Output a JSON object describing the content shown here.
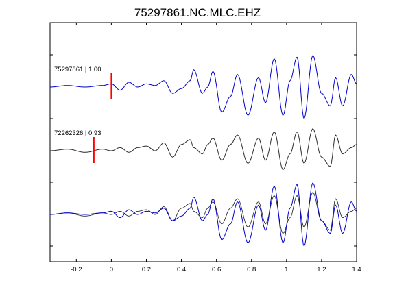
{
  "chart_data": {
    "type": "line",
    "title": "75297861.NC.MLC.EHZ",
    "xlabel": "",
    "ylabel": "",
    "xlim": [
      -0.35,
      1.4
    ],
    "x_ticks": [
      -0.2,
      0,
      0.2,
      0.4,
      0.6,
      0.8,
      1,
      1.2,
      1.4
    ],
    "x_tick_labels": [
      "-0.2",
      "0",
      "0.2",
      "0.4",
      "0.6",
      "0.8",
      "1",
      "1.2",
      "1.4"
    ],
    "grid": false,
    "colors": {
      "primary": "#0000cc",
      "secondary": "#2b2b2b",
      "marker": "#ff0000"
    },
    "traces": [
      {
        "name": "75297861",
        "label": "75297861 | 1.00",
        "color": "#0000cc",
        "pick_time": 0.0,
        "x": [
          -0.35,
          -0.25,
          -0.15,
          -0.05,
          0.0,
          0.05,
          0.1,
          0.15,
          0.2,
          0.25,
          0.3,
          0.35,
          0.4,
          0.45,
          0.47,
          0.52,
          0.55,
          0.58,
          0.63,
          0.68,
          0.72,
          0.78,
          0.84,
          0.88,
          0.93,
          0.98,
          1.02,
          1.06,
          1.1,
          1.15,
          1.2,
          1.25,
          1.28,
          1.32,
          1.37,
          1.4
        ],
        "y": [
          0.0,
          0.05,
          0.0,
          0.05,
          0.1,
          -0.1,
          0.15,
          0.0,
          0.1,
          0.05,
          0.2,
          -0.2,
          -0.05,
          0.2,
          0.55,
          -0.2,
          0.0,
          0.5,
          -0.8,
          -0.3,
          0.4,
          -0.9,
          0.3,
          -0.5,
          0.9,
          -0.9,
          0.2,
          0.95,
          -1.0,
          1.0,
          -0.2,
          -0.6,
          0.3,
          -0.6,
          0.4,
          0.1
        ]
      },
      {
        "name": "72262326",
        "label": "72262326 | 0.93",
        "color": "#2b2b2b",
        "pick_time": -0.1,
        "x": [
          -0.35,
          -0.25,
          -0.15,
          -0.05,
          0.0,
          0.05,
          0.1,
          0.15,
          0.2,
          0.25,
          0.3,
          0.35,
          0.4,
          0.45,
          0.47,
          0.52,
          0.55,
          0.58,
          0.63,
          0.68,
          0.72,
          0.78,
          0.84,
          0.88,
          0.93,
          0.98,
          1.02,
          1.06,
          1.1,
          1.15,
          1.2,
          1.25,
          1.28,
          1.32,
          1.37,
          1.4
        ],
        "y": [
          0.0,
          0.05,
          -0.05,
          0.05,
          0.0,
          0.1,
          -0.05,
          0.1,
          0.15,
          0.0,
          0.25,
          -0.2,
          0.2,
          0.35,
          0.1,
          -0.1,
          0.2,
          0.4,
          -0.3,
          0.2,
          0.5,
          -0.4,
          0.4,
          -0.3,
          0.6,
          -0.6,
          -0.1,
          0.6,
          -0.4,
          0.7,
          -0.2,
          -0.5,
          0.5,
          -0.1,
          0.1,
          0.2
        ]
      }
    ],
    "overlay": {
      "series": [
        "75297861",
        "72262326"
      ]
    }
  }
}
